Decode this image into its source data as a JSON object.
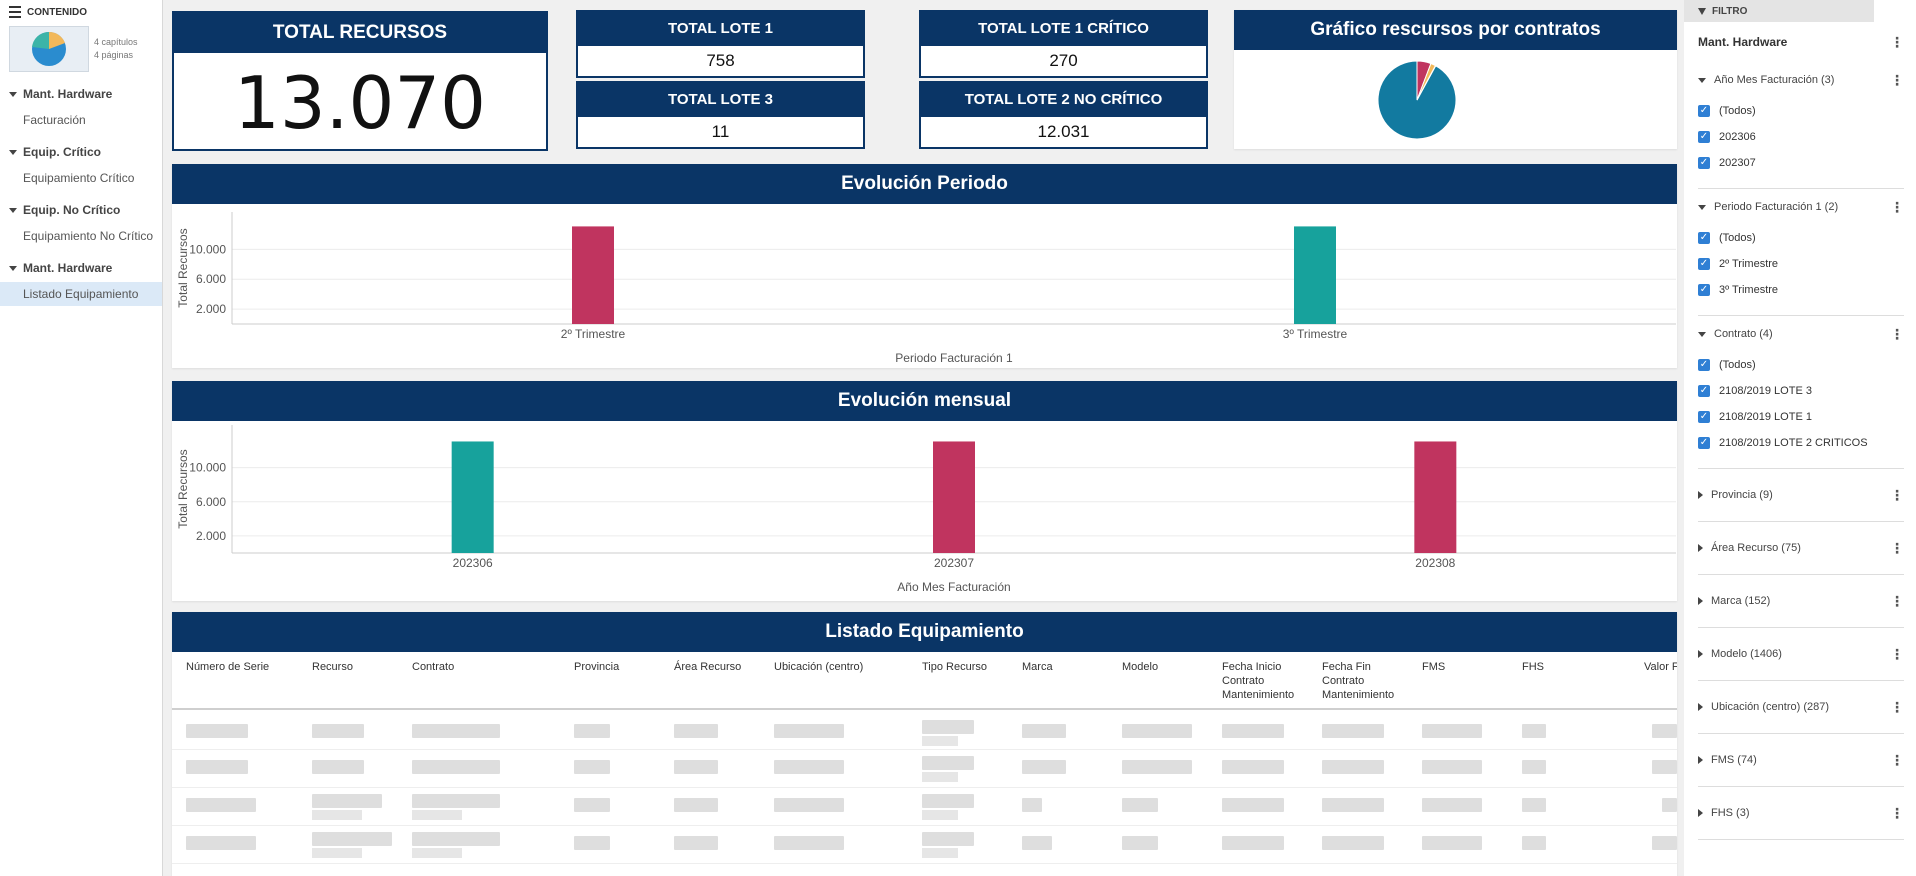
{
  "sidebar": {
    "header": "CONTENIDO",
    "thumb_info": [
      "4 capítulos",
      "4 páginas"
    ],
    "sections": [
      {
        "title": "Mant. Hardware",
        "item": "Facturación"
      },
      {
        "title": "Equip. Crítico",
        "item": "Equipamiento Crítico"
      },
      {
        "title": "Equip. No Crítico",
        "item": "Equipamiento No Crítico"
      },
      {
        "title": "Mant. Hardware",
        "item": "Listado Equipamiento"
      }
    ]
  },
  "kpis": {
    "total_recursos": {
      "label": "TOTAL RECURSOS",
      "value": "13.070"
    },
    "lote1": {
      "label": "TOTAL LOTE 1",
      "value": "758"
    },
    "lote3": {
      "label": "TOTAL LOTE 3",
      "value": "11"
    },
    "lote1_critico": {
      "label": "TOTAL LOTE 1 CRÍTICO",
      "value": "270"
    },
    "lote2_no_critico": {
      "label": "TOTAL LOTE 2 NO CRÍTICO",
      "value": "12.031"
    }
  },
  "pie_title": "Gráfico rescursos por contratos",
  "evolucion_periodo_title": "Evolución Periodo",
  "evolucion_mensual_title": "Evolución mensual",
  "chart_data": [
    {
      "type": "pie",
      "title": "Gráfico rescursos por contratos",
      "slices": [
        {
          "value": 12031,
          "color": "#127aa0"
        },
        {
          "value": 758,
          "color": "#c0345f"
        },
        {
          "value": 270,
          "color": "#f2b85a"
        },
        {
          "value": 11,
          "color": "#17a29c"
        }
      ]
    },
    {
      "type": "bar",
      "title": "Evolución Periodo",
      "categories": [
        "2º Trimestre",
        "3º Trimestre"
      ],
      "values": [
        13070,
        13070
      ],
      "colors": [
        "#c0345f",
        "#17a29c"
      ],
      "xlabel": "Periodo Facturación 1",
      "ylabel": "Total Recursos",
      "yticks": [
        "2.000",
        "6.000",
        "10.000"
      ],
      "ytick_values": [
        2000,
        6000,
        10000
      ],
      "ylim": [
        0,
        15000
      ]
    },
    {
      "type": "bar",
      "title": "Evolución mensual",
      "categories": [
        "202306",
        "202307",
        "202308"
      ],
      "values": [
        13070,
        13070,
        13070
      ],
      "colors": [
        "#17a29c",
        "#c0345f",
        "#c0345f"
      ],
      "xlabel": "Año Mes Facturación",
      "ylabel": "Total Recursos",
      "yticks": [
        "2.000",
        "6.000",
        "10.000"
      ],
      "ytick_values": [
        2000,
        6000,
        10000
      ],
      "ylim": [
        0,
        15000
      ]
    }
  ],
  "table": {
    "title": "Listado Equipamiento",
    "columns": [
      "Número de Serie",
      "Recurso",
      "Contrato",
      "Provincia",
      "Área Recurso",
      "Ubicación (centro)",
      "Tipo Recurso",
      "Marca",
      "Modelo",
      "Fecha Inicio Contrato Mantenimiento",
      "Fecha Fin Contrato Mantenimiento",
      "FMS",
      "FHS",
      "Valor F"
    ]
  },
  "filter": {
    "header": "FILTRO",
    "title": "Mant. Hardware",
    "groups": [
      {
        "label": "Año Mes Facturación (3)",
        "options": [
          "(Todos)",
          "202306",
          "202307"
        ]
      },
      {
        "label": "Periodo Facturación 1 (2)",
        "options": [
          "(Todos)",
          "2º Trimestre",
          "3º Trimestre"
        ]
      },
      {
        "label": "Contrato (4)",
        "options": [
          "(Todos)",
          "2108/2019 LOTE 3",
          "2108/2019 LOTE 1",
          "2108/2019 LOTE 2 CRITICOS"
        ]
      }
    ],
    "collapsed": [
      "Provincia (9)",
      "Área Recurso (75)",
      "Marca (152)",
      "Modelo (1406)",
      "Ubicación (centro) (287)",
      "FMS (74)",
      "FHS (3)"
    ]
  }
}
